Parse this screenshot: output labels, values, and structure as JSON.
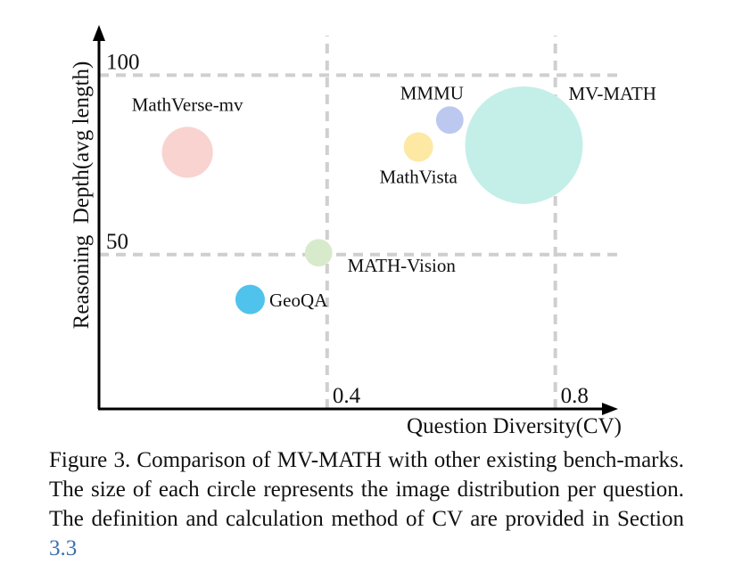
{
  "chart_data": {
    "type": "scatter",
    "xlabel": "Question Diversity(CV)",
    "ylabel": "Reasoning  Depth(avg length)",
    "x_ticks": [
      {
        "value": 0.4,
        "label": "0.4"
      },
      {
        "value": 0.8,
        "label": "0.8"
      }
    ],
    "y_ticks": [
      {
        "value": 50,
        "label": "50"
      },
      {
        "value": 100,
        "label": "100"
      }
    ],
    "xlim": [
      0.0,
      0.91
    ],
    "ylim": [
      7,
      114
    ],
    "grid": "dashed at tick values",
    "bubble_size_meaning": "image distribution per question (relative)",
    "points": [
      {
        "name": "MathVerse-mv",
        "x": 0.155,
        "y": 78.5,
        "size": 1.3,
        "color": "#f8d3d0",
        "label_pos": "above"
      },
      {
        "name": "GeoQA",
        "x": 0.265,
        "y": 37.5,
        "size": 0.75,
        "color": "#4fc3ec",
        "label_pos": "right"
      },
      {
        "name": "MATH-Vision",
        "x": 0.385,
        "y": 50.5,
        "size": 0.7,
        "color": "#d7ebcc",
        "label_pos": "below-right"
      },
      {
        "name": "MathVista",
        "x": 0.56,
        "y": 80,
        "size": 0.75,
        "color": "#fde8a4",
        "label_pos": "below"
      },
      {
        "name": "MMMU",
        "x": 0.615,
        "y": 87.5,
        "size": 0.7,
        "color": "#bcc8ef",
        "label_pos": "above-left"
      },
      {
        "name": "MV-MATH",
        "x": 0.745,
        "y": 80.5,
        "size": 3.0,
        "color": "#c4efe9",
        "label_pos": "above-right"
      }
    ]
  },
  "caption": {
    "label": "Figure 3.",
    "text": "Comparison of MV-MATH with other existing bench-marks. The size of each circle represents the image distribution per question. The definition and calculation method of CV are provided in Section",
    "ref": "3.3"
  }
}
